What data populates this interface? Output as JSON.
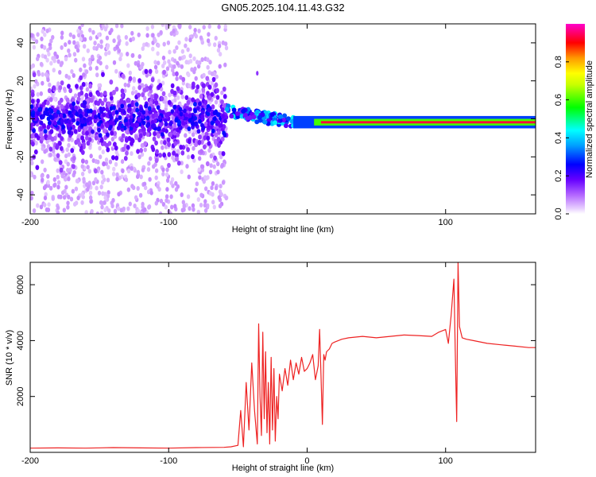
{
  "title": "GN05.2025.104.11.43.G32",
  "colors": {
    "snr_line": "#ee2222",
    "frame": "#000000",
    "background": "#ffffff"
  },
  "chart_data": [
    {
      "type": "heatmap",
      "title": "GN05.2025.104.11.43.G32",
      "xlabel": "Height of straight line (km)",
      "ylabel": "Frequency (Hz)",
      "xlim": [
        -200,
        165
      ],
      "ylim": [
        -50,
        50
      ],
      "x_ticks": [
        -200,
        -100,
        0,
        100
      ],
      "x_tick_labels": [
        "-200",
        "-100",
        "",
        "100"
      ],
      "y_ticks": [
        -40,
        -20,
        0,
        20,
        40
      ],
      "y_tick_labels": [
        "-40",
        "-20",
        "0",
        "20",
        "40"
      ],
      "colorbar": {
        "label": "Normalized spectral amplitude",
        "range": [
          0,
          1
        ],
        "colormap": "rainbow (white-violet-blue-cyan-green-yellow-orange-red-magenta)",
        "ticks": [
          0.0,
          0.2,
          0.4,
          0.6,
          0.8
        ],
        "tick_labels": [
          "0.0",
          "0.2",
          "0.4",
          "0.6",
          "0.8"
        ]
      },
      "features": [
        {
          "height_range_km": [
            -200,
            -58
          ],
          "description": "scattered low-amplitude noise across full frequency range, dense band near 0 Hz (amplitude ~0.1-0.2)"
        },
        {
          "height_range_km": [
            -58,
            -10
          ],
          "description": "signal emerging near 0-5 Hz with amplitude ~0.3-0.5"
        },
        {
          "height_range_km": [
            -10,
            165
          ],
          "description": "strong narrow tone near -2 Hz, amplitude ~1.0"
        }
      ],
      "grid": false
    },
    {
      "type": "line",
      "xlabel": "Height of straight line (km)",
      "ylabel": "SNR (10 * v/v)",
      "xlim": [
        -200,
        165
      ],
      "ylim": [
        0,
        6800
      ],
      "x_ticks": [
        -200,
        -100,
        0,
        100
      ],
      "x_tick_labels": [
        "-200",
        "-100",
        "0",
        "100"
      ],
      "y_ticks": [
        2000,
        4000,
        6000
      ],
      "y_tick_labels": [
        "2000",
        "4000",
        "6000"
      ],
      "series": [
        {
          "color": "#ee2222",
          "x": [
            -200,
            -180,
            -160,
            -140,
            -120,
            -100,
            -80,
            -60,
            -55,
            -50,
            -48,
            -46,
            -44,
            -42,
            -40,
            -38,
            -36,
            -35,
            -34,
            -33,
            -32,
            -31,
            -30,
            -29,
            -28,
            -27,
            -26,
            -25,
            -24,
            -23,
            -22,
            -21,
            -20,
            -18,
            -16,
            -14,
            -12,
            -10,
            -8,
            -6,
            -4,
            -2,
            0,
            2,
            4,
            6,
            8,
            9,
            10,
            11,
            12,
            13,
            14,
            16,
            18,
            20,
            25,
            30,
            40,
            50,
            60,
            70,
            80,
            90,
            95,
            100,
            102,
            104,
            106,
            107,
            108,
            109,
            110,
            112,
            115,
            120,
            130,
            140,
            150,
            160,
            165
          ],
          "y": [
            150,
            160,
            150,
            170,
            160,
            150,
            170,
            180,
            200,
            250,
            1500,
            200,
            2500,
            800,
            3200,
            1500,
            300,
            4600,
            2000,
            600,
            4300,
            1200,
            3600,
            700,
            2500,
            300,
            3400,
            800,
            3000,
            400,
            2000,
            1200,
            2800,
            2200,
            3000,
            2400,
            3300,
            2600,
            3200,
            2800,
            3400,
            2900,
            3000,
            3200,
            3500,
            2600,
            3100,
            4400,
            2800,
            1000,
            3500,
            3300,
            3600,
            3700,
            3900,
            3950,
            4050,
            4100,
            4150,
            4100,
            4150,
            4200,
            4180,
            4150,
            4300,
            4400,
            3900,
            4900,
            6200,
            3600,
            1100,
            6800,
            4500,
            4100,
            4050,
            4000,
            3900,
            3850,
            3800,
            3750,
            3750
          ]
        }
      ],
      "grid": false
    }
  ]
}
